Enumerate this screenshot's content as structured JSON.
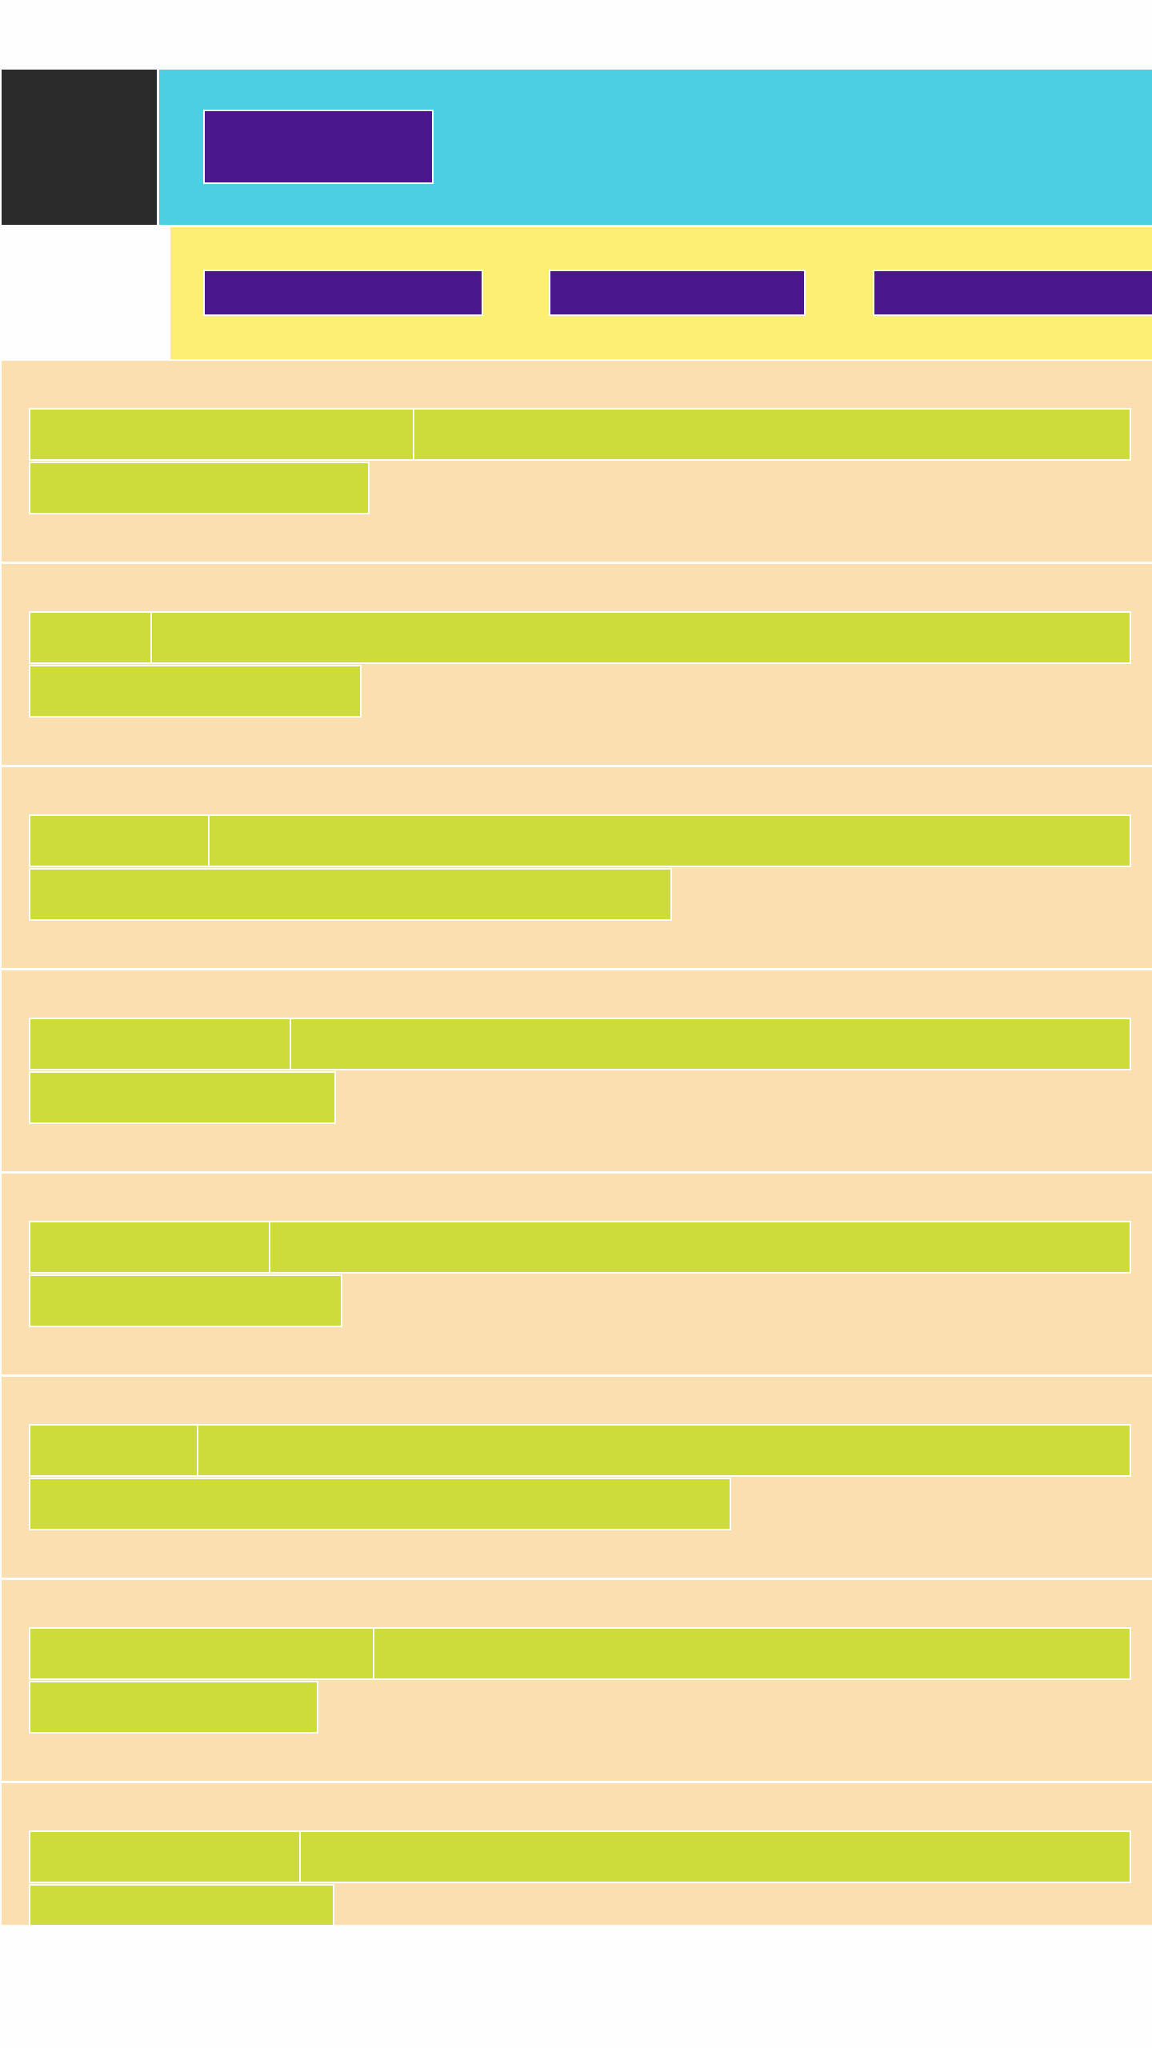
{
  "header": {
    "logo": "",
    "primary_button_label": ""
  },
  "nav": {
    "items": [
      {
        "label": ""
      },
      {
        "label": ""
      },
      {
        "label": ""
      }
    ]
  },
  "list": {
    "items": [
      {
        "label": "",
        "value": "",
        "detail": ""
      },
      {
        "label": "",
        "value": "",
        "detail": ""
      },
      {
        "label": "",
        "value": "",
        "detail": ""
      },
      {
        "label": "",
        "value": "",
        "detail": ""
      },
      {
        "label": "",
        "value": "",
        "detail": ""
      },
      {
        "label": "",
        "value": "",
        "detail": ""
      },
      {
        "label": "",
        "value": "",
        "detail": ""
      },
      {
        "label": "",
        "value": "",
        "detail": ""
      }
    ]
  },
  "colors": {
    "header_bg": "#4ad0e2",
    "nav_bg": "#fdee74",
    "button_bg": "#4a168c",
    "card_bg": "#fcdfb1",
    "field_bg": "#cddc3a",
    "logo_bg": "#2b2b2b"
  }
}
